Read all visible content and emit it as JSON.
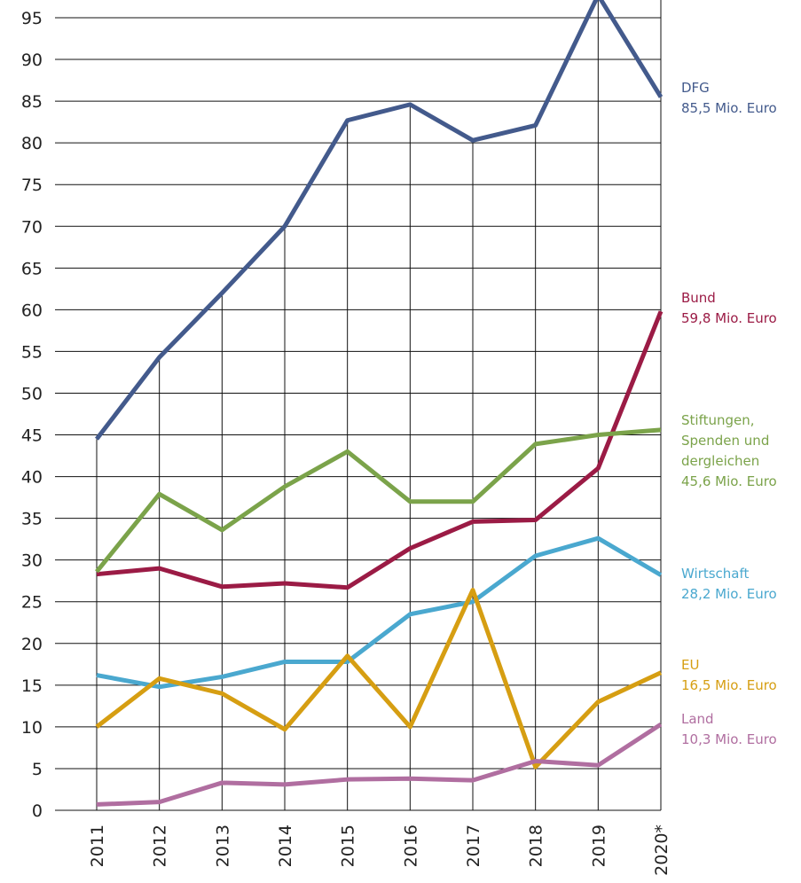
{
  "chart_data": {
    "type": "line",
    "categories": [
      "2011",
      "2012",
      "2013",
      "2014",
      "2015",
      "2016",
      "2017",
      "2018",
      "2019",
      "2020*"
    ],
    "ylim": [
      0,
      95
    ],
    "yticks": [
      0,
      5,
      10,
      15,
      20,
      25,
      30,
      35,
      40,
      45,
      50,
      55,
      60,
      65,
      70,
      75,
      80,
      85,
      90,
      95
    ],
    "grid": true,
    "series": [
      {
        "name": "DFG",
        "color": "#435a8c",
        "values": [
          44.5,
          54.3,
          62,
          70,
          82.7,
          84.6,
          80.3,
          82.1,
          97.7,
          85.5
        ],
        "end_label": "85,5 Mio. Euro"
      },
      {
        "name": "Bund",
        "color": "#9b1b45",
        "values": [
          28.3,
          29,
          26.8,
          27.2,
          26.7,
          31.4,
          34.6,
          34.8,
          41,
          59.8
        ],
        "end_label": "59,8 Mio. Euro"
      },
      {
        "name": "Stiftungen, Spenden und dergleichen",
        "color": "#7ba34a",
        "values": [
          28.6,
          37.9,
          33.6,
          38.8,
          43,
          37,
          37,
          43.9,
          45,
          45.6
        ],
        "end_label": "45,6 Mio. Euro"
      },
      {
        "name": "Wirtschaft",
        "color": "#4aa8cf",
        "values": [
          16.2,
          14.8,
          16,
          17.8,
          17.8,
          23.5,
          25,
          30.5,
          32.6,
          28.2
        ],
        "end_label": "28,2 Mio. Euro"
      },
      {
        "name": "EU",
        "color": "#d69e12",
        "values": [
          10,
          15.8,
          14,
          9.7,
          18.5,
          10,
          26.4,
          5.2,
          13,
          16.5
        ],
        "end_label": "16,5 Mio. Euro"
      },
      {
        "name": "Land",
        "color": "#b06ea0",
        "values": [
          0.7,
          1,
          3.3,
          3.1,
          3.7,
          3.8,
          3.6,
          5.9,
          5.4,
          10.3
        ],
        "end_label": "10,3 Mio. Euro"
      }
    ]
  }
}
